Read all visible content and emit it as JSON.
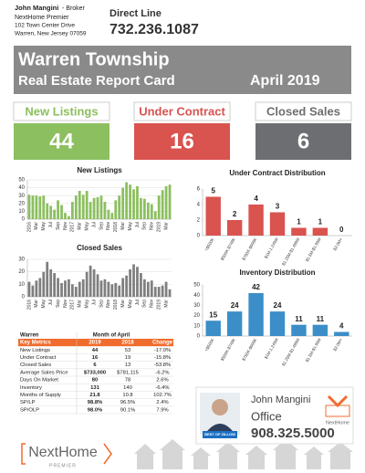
{
  "header": {
    "agent_name": "John Mangini",
    "agent_role": "- Broker",
    "brokerage": "NextHome Premier",
    "address": "102 Town Center Drive",
    "city": "Warren, New Jersey 07059",
    "phone_label": "Direct Line",
    "phone": "732.236.1087"
  },
  "banner": {
    "town": "Warren Township",
    "title": "Real Estate Report Card",
    "period": "April 2019"
  },
  "stats": [
    {
      "label": "New Listings",
      "value": 44,
      "color": "#8cbf5f"
    },
    {
      "label": "Under Contract",
      "value": 16,
      "color": "#d9534f"
    },
    {
      "label": "Closed Sales",
      "value": 6,
      "color": "#6d6e71"
    }
  ],
  "chart_data": [
    {
      "type": "bar",
      "title": "New Listings",
      "color": "#8cbf5f",
      "grid": true,
      "categories": [
        "2016",
        null,
        "Mar",
        null,
        "May",
        null,
        "Jul",
        null,
        "Sep",
        null,
        "Nov",
        null,
        "2017",
        null,
        "Mar",
        null,
        "May",
        null,
        "Jul",
        null,
        "Sep",
        null,
        "Nov",
        null,
        "2018",
        null,
        "Mar",
        null,
        "May",
        null,
        "Jul",
        null,
        "Sep",
        null,
        "Nov",
        null,
        "2019",
        null,
        "Mar",
        null
      ],
      "values": [
        31,
        30,
        30,
        29,
        30,
        20,
        17,
        12,
        24,
        18,
        8,
        4,
        22,
        30,
        36,
        31,
        36,
        22,
        27,
        28,
        30,
        22,
        12,
        8,
        24,
        30,
        40,
        47,
        44,
        38,
        42,
        27,
        26,
        21,
        19,
        10,
        30,
        37,
        42,
        44
      ],
      "ylim": [
        0,
        50
      ],
      "yticks": [
        0,
        10,
        20,
        30,
        40,
        50
      ]
    },
    {
      "type": "bar",
      "title": "Under Contract Distribution",
      "color": "#d9534f",
      "grid": false,
      "data_labels": true,
      "categories": [
        "<$500K",
        "$500K-$749K",
        "$750K-$999K",
        "$1M-1.249M",
        "$1.25M-$1.499M",
        "$1.5M-$1.99M",
        "$2.0M+"
      ],
      "values": [
        5,
        2,
        4,
        3,
        1,
        1,
        0
      ],
      "ylim": [
        0,
        6
      ],
      "yticks": [
        0,
        2,
        4,
        6
      ]
    },
    {
      "type": "bar",
      "title": "Closed Sales",
      "color": "#7f7f7f",
      "grid": true,
      "categories": [
        "2016",
        null,
        "Mar",
        null,
        "May",
        null,
        "Jul",
        null,
        "Sep",
        null,
        "Nov",
        null,
        "2017",
        null,
        "Mar",
        null,
        "May",
        null,
        "Jul",
        null,
        "Sep",
        null,
        "Nov",
        null,
        "2018",
        null,
        "Mar",
        null,
        "May",
        null,
        "Jul",
        null,
        "Sep",
        null,
        "Nov",
        null,
        "2019",
        null,
        "Mar",
        null
      ],
      "values": [
        12,
        9,
        13,
        15,
        20,
        28,
        22,
        19,
        15,
        11,
        13,
        14,
        10,
        8,
        12,
        14,
        20,
        25,
        22,
        18,
        13,
        14,
        12,
        10,
        11,
        9,
        15,
        17,
        22,
        26,
        24,
        19,
        14,
        12,
        13,
        8,
        8,
        9,
        12,
        6
      ],
      "ylim": [
        0,
        30
      ],
      "yticks": [
        0,
        10,
        20,
        30
      ]
    },
    {
      "type": "bar",
      "title": "Inventory Distribution",
      "color": "#3b8ec8",
      "grid": false,
      "data_labels": true,
      "categories": [
        "<$500K",
        "$500K-$749K",
        "$750K-$999K",
        "$1M-1.249M",
        "$1.25M-$1.499M",
        "$1.5M-$1.99M",
        "$2.0M+"
      ],
      "values": [
        15,
        24,
        42,
        24,
        11,
        11,
        4
      ],
      "ylim": [
        0,
        50
      ],
      "yticks": [
        0,
        10,
        20,
        30,
        40,
        50
      ]
    }
  ],
  "table": {
    "area": "Warren",
    "period": "Month of April",
    "header_color": "#ef6c2d",
    "columns": [
      "Key Metrics",
      "2019",
      "2018",
      "Change"
    ],
    "rows": [
      [
        "New Listings",
        "44",
        "53",
        "-17.0%"
      ],
      [
        "Under Contract",
        "16",
        "19",
        "-15.8%"
      ],
      [
        "Closed Sales",
        "6",
        "13",
        "-53.8%"
      ],
      [
        "Average Sales Price",
        "$733,000",
        "$781,115",
        "-6.2%"
      ],
      [
        "Days On Market",
        "80",
        "78",
        "2.6%"
      ],
      [
        "Inventory",
        "131",
        "140",
        "-6.4%"
      ],
      [
        "Months of Supply",
        "21.8",
        "10.8",
        "102.7%"
      ],
      [
        "SP/LP",
        "98.8%",
        "96.5%",
        "2.4%"
      ],
      [
        "SP/OLP",
        "98.0%",
        "90.1%",
        "7.9%"
      ]
    ]
  },
  "agent_card": {
    "name": "John Mangini",
    "office_label": "Office",
    "phone": "908.325.5000",
    "badge": "BEST OF ZILLOW",
    "brand": "NextHome"
  },
  "footer": {
    "logo": "NextHome",
    "logo_sub": "PREMIER"
  }
}
